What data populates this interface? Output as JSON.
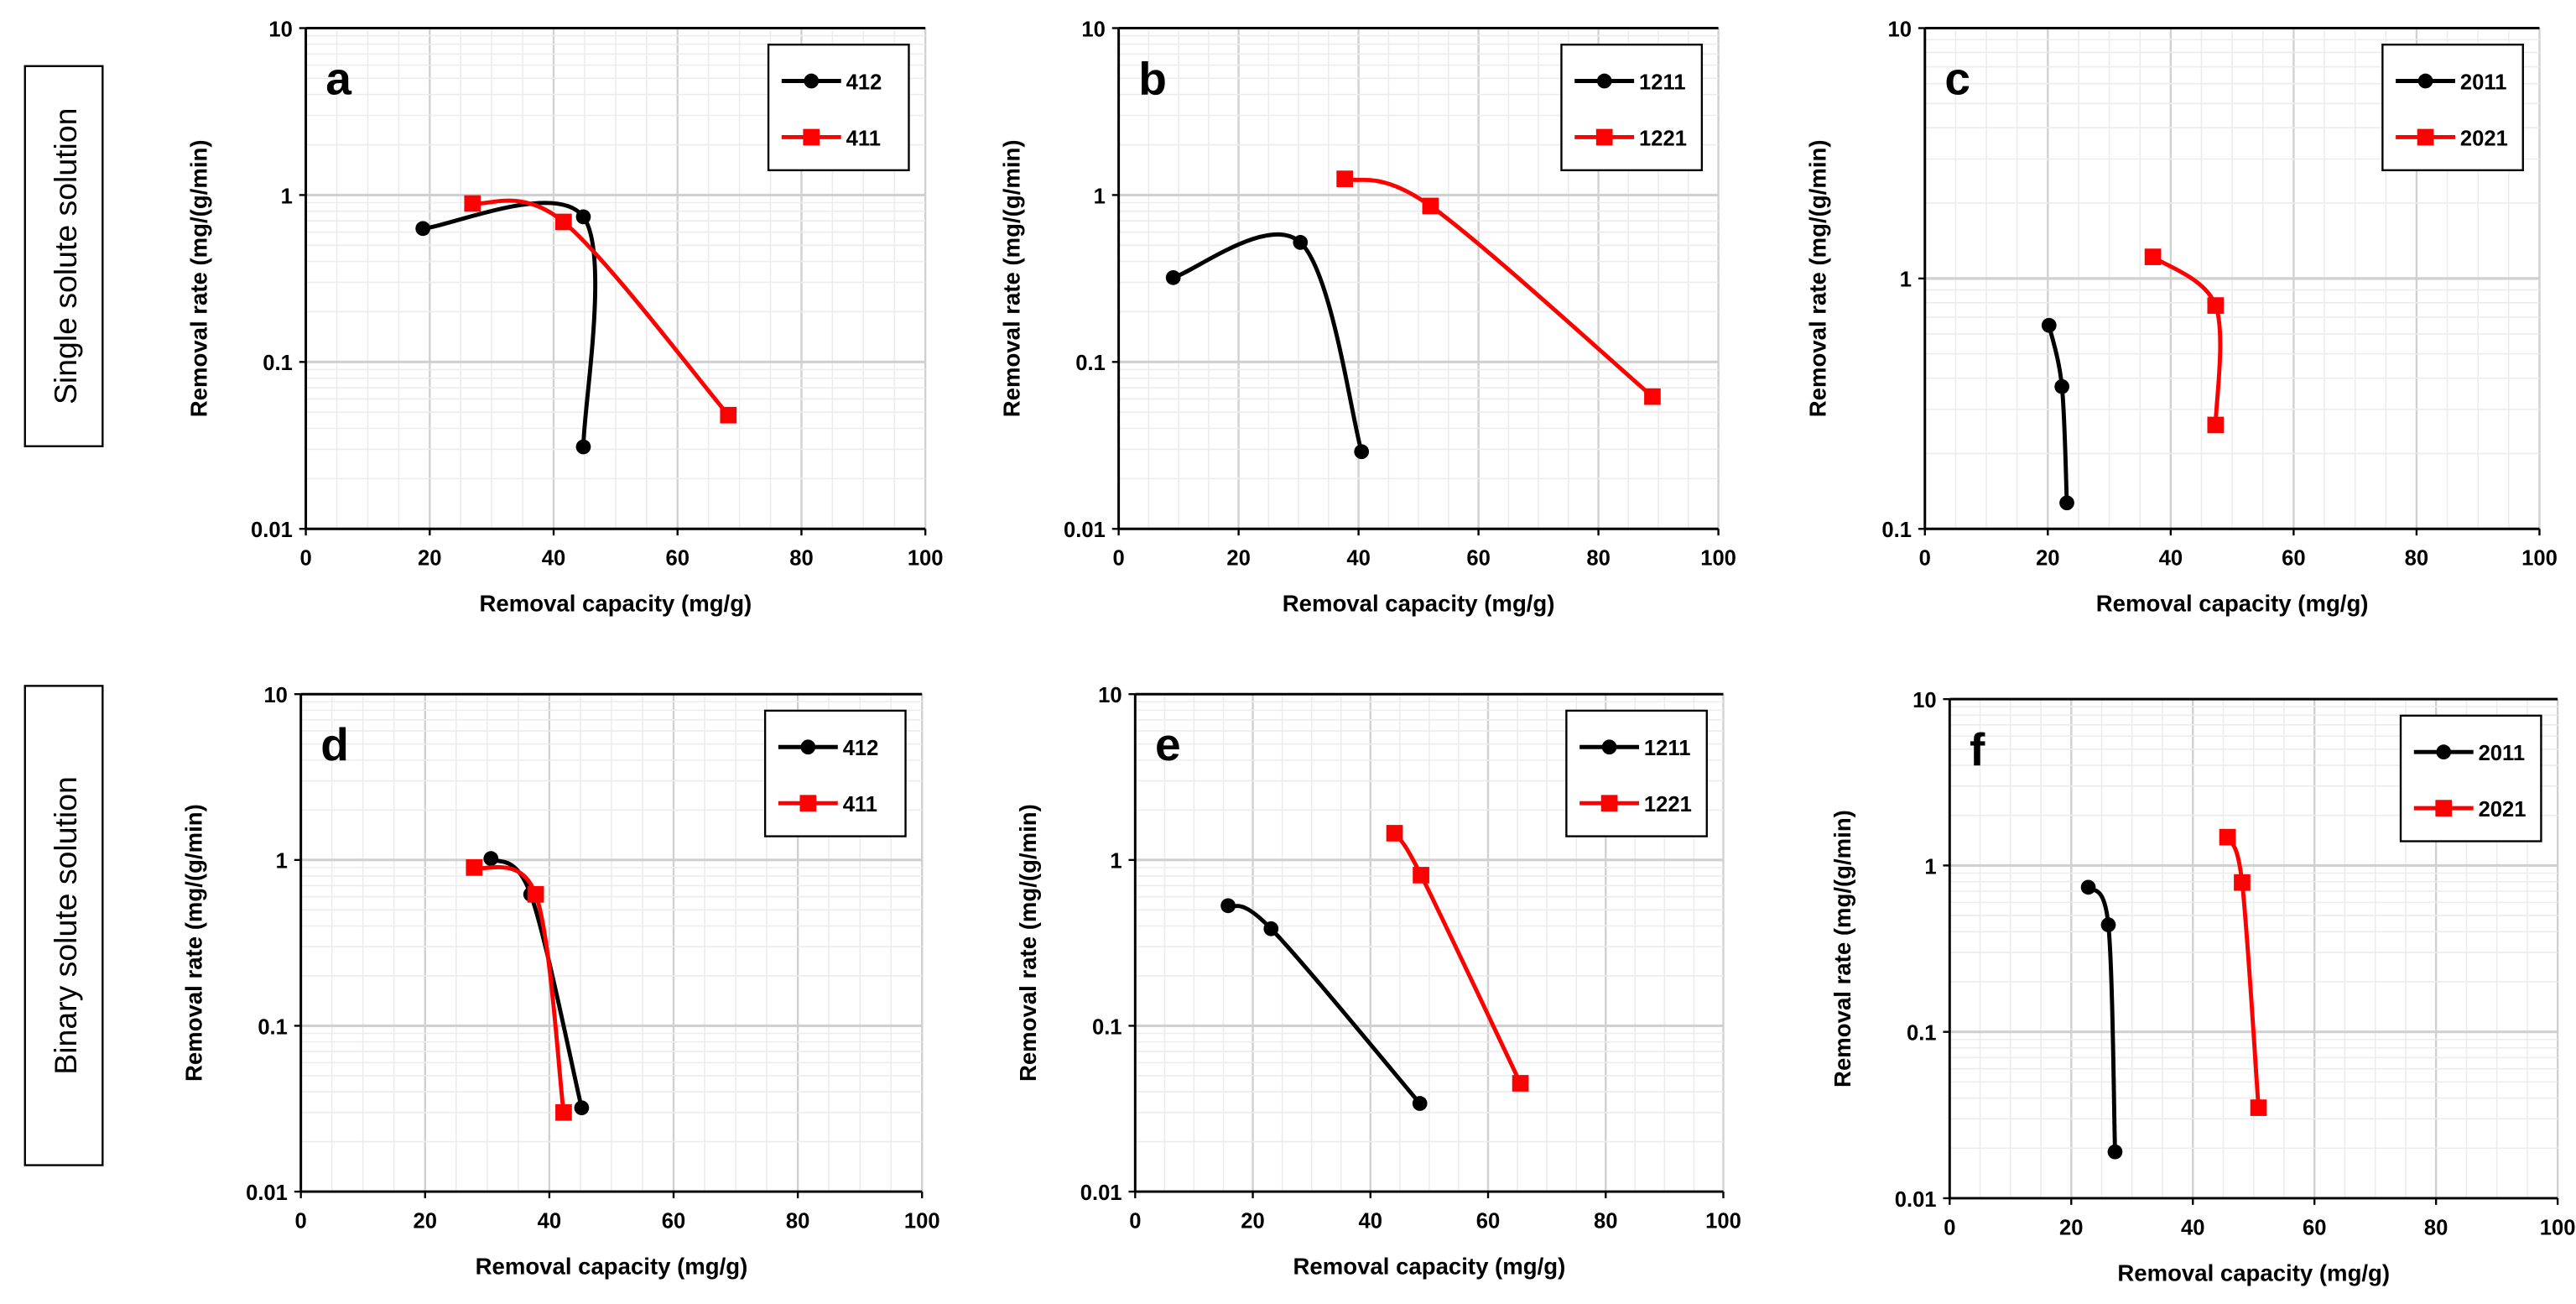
{
  "row_labels": [
    "Single solute solution",
    "Binary solute solution"
  ],
  "colors": {
    "black_series": "#000000",
    "red_series": "#ff0000",
    "grid": "#d9d9d9"
  },
  "chart_data": [
    {
      "type": "line",
      "panel": "a",
      "xlabel": "Removal capacity (mg/g)",
      "ylabel": "Removal rate (mg/(g/min)",
      "xlim": [
        0,
        100
      ],
      "ylim": [
        0.01,
        10
      ],
      "yscale": "log",
      "xticks": [
        "0",
        "20",
        "40",
        "60",
        "80",
        "100"
      ],
      "yticks": [
        "0.01",
        "0.1",
        "1",
        "10"
      ],
      "legend": "top-right",
      "grid": true,
      "series": [
        {
          "name": "412",
          "marker": "circle",
          "color": "#000000",
          "x": [
            18.9,
            44.8,
            44.8
          ],
          "y": [
            0.63,
            0.74,
            0.031
          ]
        },
        {
          "name": "411",
          "marker": "square",
          "color": "#ff0000",
          "x": [
            26.9,
            41.6,
            68.2
          ],
          "y": [
            0.89,
            0.69,
            0.048
          ]
        }
      ]
    },
    {
      "type": "line",
      "panel": "b",
      "xlabel": "Removal capacity (mg/g)",
      "ylabel": "Removal rate (mg/(g/min)",
      "xlim": [
        0,
        100
      ],
      "ylim": [
        0.01,
        10
      ],
      "yscale": "log",
      "xticks": [
        "0",
        "20",
        "40",
        "60",
        "80",
        "100"
      ],
      "yticks": [
        "0.01",
        "0.1",
        "1",
        "10"
      ],
      "legend": "top-right",
      "grid": true,
      "series": [
        {
          "name": "1211",
          "marker": "circle",
          "color": "#000000",
          "x": [
            9.1,
            30.3,
            40.5
          ],
          "y": [
            0.32,
            0.52,
            0.029
          ]
        },
        {
          "name": "1221",
          "marker": "square",
          "color": "#ff0000",
          "x": [
            37.7,
            52,
            89
          ],
          "y": [
            1.25,
            0.86,
            0.062
          ]
        }
      ]
    },
    {
      "type": "line",
      "panel": "c",
      "xlabel": "Removal capacity (mg/g)",
      "ylabel": "Removal rate (mg/(g/min)",
      "xlim": [
        0,
        100
      ],
      "ylim": [
        0.1,
        10
      ],
      "yscale": "log",
      "xticks": [
        "0",
        "20",
        "40",
        "60",
        "80",
        "100"
      ],
      "yticks": [
        "0.1",
        "1",
        "10"
      ],
      "legend": "top-right",
      "grid": true,
      "series": [
        {
          "name": "2011",
          "marker": "circle",
          "color": "#000000",
          "x": [
            20.2,
            22.3,
            23.1
          ],
          "y": [
            0.65,
            0.37,
            0.127
          ]
        },
        {
          "name": "2021",
          "marker": "square",
          "color": "#ff0000",
          "x": [
            37.1,
            47.3,
            47.3
          ],
          "y": [
            1.22,
            0.78,
            0.26
          ]
        }
      ]
    },
    {
      "type": "line",
      "panel": "d",
      "xlabel": "Removal capacity (mg/g)",
      "ylabel": "Removal rate (mg/(g/min)",
      "xlim": [
        0,
        100
      ],
      "ylim": [
        0.01,
        10
      ],
      "yscale": "log",
      "xticks": [
        "0",
        "20",
        "40",
        "60",
        "80",
        "100"
      ],
      "yticks": [
        "0.01",
        "0.1",
        "1",
        "10"
      ],
      "legend": "top-right",
      "grid": true,
      "series": [
        {
          "name": "412",
          "marker": "circle",
          "color": "#000000",
          "x": [
            30.6,
            37,
            45.2
          ],
          "y": [
            1.02,
            0.62,
            0.032
          ]
        },
        {
          "name": "411",
          "marker": "square",
          "color": "#ff0000",
          "x": [
            27.9,
            37.8,
            42.3
          ],
          "y": [
            0.9,
            0.62,
            0.03
          ]
        }
      ]
    },
    {
      "type": "line",
      "panel": "e",
      "xlabel": "Removal capacity (mg/g)",
      "ylabel": "Removal rate (mg/(g/min)",
      "xlim": [
        0,
        100
      ],
      "ylim": [
        0.01,
        10
      ],
      "yscale": "log",
      "xticks": [
        "0",
        "20",
        "40",
        "60",
        "80",
        "100"
      ],
      "yticks": [
        "0.01",
        "0.1",
        "1",
        "10"
      ],
      "legend": "top-right",
      "grid": true,
      "series": [
        {
          "name": "1211",
          "marker": "circle",
          "color": "#000000",
          "x": [
            15.8,
            23.1,
            48.4
          ],
          "y": [
            0.53,
            0.385,
            0.034
          ]
        },
        {
          "name": "1221",
          "marker": "square",
          "color": "#ff0000",
          "x": [
            44.1,
            48.6,
            65.5
          ],
          "y": [
            1.45,
            0.81,
            0.045
          ]
        }
      ]
    },
    {
      "type": "line",
      "panel": "f",
      "xlabel": "Removal capacity (mg/g)",
      "ylabel": "Removal rate (mg/(g/min)",
      "xlim": [
        0,
        100
      ],
      "ylim": [
        0.01,
        10
      ],
      "yscale": "log",
      "xticks": [
        "0",
        "20",
        "40",
        "60",
        "80",
        "100"
      ],
      "yticks": [
        "0.01",
        "0.1",
        "1",
        "10"
      ],
      "legend": "top-right",
      "grid": true,
      "series": [
        {
          "name": "2011",
          "marker": "circle",
          "color": "#000000",
          "x": [
            22.8,
            26.1,
            27.2
          ],
          "y": [
            0.74,
            0.44,
            0.019
          ]
        },
        {
          "name": "2021",
          "marker": "square",
          "color": "#ff0000",
          "x": [
            45.7,
            48.1,
            50.8
          ],
          "y": [
            1.48,
            0.79,
            0.035
          ]
        }
      ]
    }
  ]
}
